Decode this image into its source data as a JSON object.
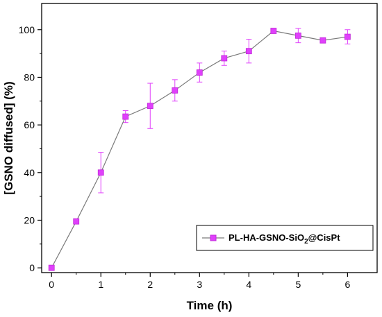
{
  "chart_data": {
    "type": "line",
    "xlabel": "Time (h)",
    "ylabel": "[GSNO diffused] (%)",
    "xlim": [
      -0.2,
      6.6
    ],
    "ylim": [
      -2,
      111
    ],
    "xticks": [
      0,
      1,
      2,
      3,
      4,
      5,
      6
    ],
    "yticks": [
      0,
      20,
      40,
      60,
      80,
      100
    ],
    "grid": false,
    "legend_position": "bottom-right",
    "series": [
      {
        "name": "PL-HA-GSNO-SiO2@CisPt",
        "legend_main": "PL-HA-GSNO-SiO",
        "legend_sub": "2",
        "legend_tail": "@CisPt",
        "marker": "square",
        "marker_color": "#e040fb",
        "marker_edge": "#c02ad8",
        "line_color": "#7a7a7a",
        "x": [
          0,
          0.5,
          1,
          1.5,
          2,
          2.5,
          3,
          3.5,
          4,
          4.5,
          5,
          5.5,
          6
        ],
        "y": [
          0,
          19.5,
          40,
          63.5,
          68,
          74.5,
          82,
          88,
          91,
          99.5,
          97.5,
          95.5,
          97
        ],
        "error": [
          0,
          0,
          8.5,
          2.5,
          9.5,
          4.5,
          4,
          3,
          5,
          0,
          3,
          0,
          3
        ]
      }
    ]
  }
}
